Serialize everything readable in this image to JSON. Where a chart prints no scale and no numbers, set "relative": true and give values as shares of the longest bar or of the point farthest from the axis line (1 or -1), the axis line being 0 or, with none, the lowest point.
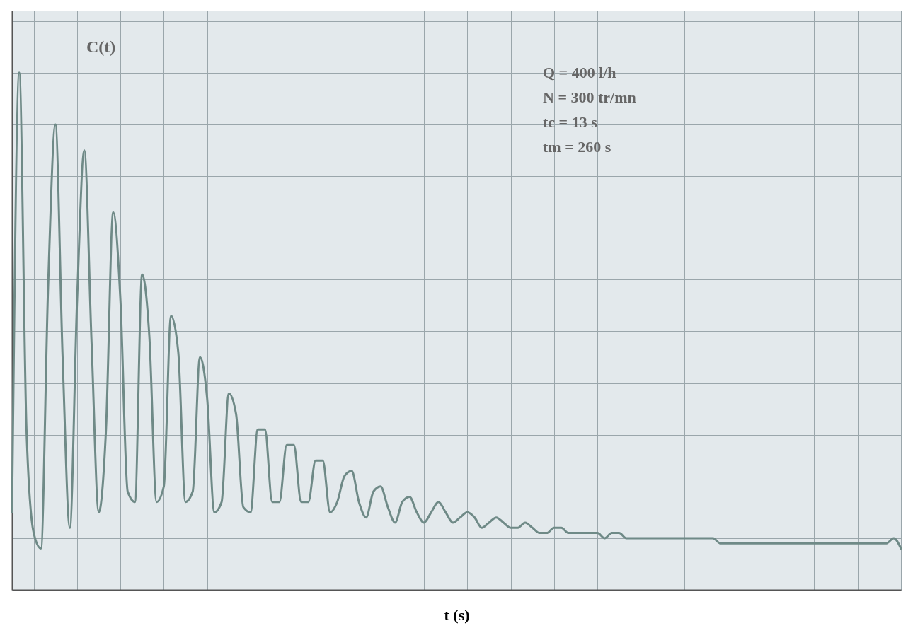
{
  "chart_data": {
    "type": "line",
    "relative": true,
    "xlabel": "t (s)",
    "ylabel": "C(t)",
    "grid": true,
    "legend": false,
    "marker": "none",
    "line_style": "solid",
    "annotations": [
      "Q = 400 l/h",
      "N = 300 tr/mn",
      "tc = 13 s",
      "tm = 260 s"
    ],
    "categories": [
      null,
      null,
      null,
      null,
      null,
      null,
      null,
      null,
      null,
      null,
      null,
      null,
      null,
      null,
      null,
      null,
      null,
      null,
      null,
      null,
      null,
      null,
      null,
      null,
      null,
      null,
      null,
      null,
      null,
      null,
      null,
      null,
      null,
      null,
      null,
      null,
      null,
      null,
      null,
      null,
      null,
      null,
      null,
      null,
      null,
      null,
      null,
      null,
      null,
      null,
      null,
      null,
      null,
      null,
      null,
      null,
      null,
      null,
      null,
      null,
      null,
      null,
      null,
      null,
      null,
      null,
      null,
      null,
      null,
      null,
      null,
      null,
      null,
      null,
      null,
      null,
      null,
      null,
      null,
      null,
      null,
      null,
      null,
      null,
      null,
      null,
      null,
      null,
      null,
      null,
      null,
      null,
      null,
      null,
      null,
      null,
      null,
      null,
      null,
      null,
      null,
      null,
      null,
      null,
      null,
      null,
      null,
      null,
      null,
      null,
      null,
      null,
      null,
      null,
      null,
      null,
      null,
      null,
      null,
      null,
      null,
      null,
      null,
      null
    ],
    "series": [
      {
        "color": "#6f8a87",
        "values": [
          0.15,
          1.0,
          0.31,
          0.11,
          0.08,
          0.59,
          0.9,
          0.45,
          0.12,
          0.56,
          0.85,
          0.48,
          0.15,
          0.31,
          0.73,
          0.56,
          0.19,
          0.17,
          0.61,
          0.49,
          0.17,
          0.2,
          0.53,
          0.46,
          0.17,
          0.19,
          0.45,
          0.37,
          0.15,
          0.17,
          0.38,
          0.34,
          0.16,
          0.15,
          0.31,
          0.31,
          0.17,
          0.17,
          0.28,
          0.28,
          0.17,
          0.17,
          0.25,
          0.25,
          0.15,
          0.17,
          0.22,
          0.23,
          0.17,
          0.14,
          0.19,
          0.2,
          0.16,
          0.13,
          0.17,
          0.18,
          0.15,
          0.13,
          0.15,
          0.17,
          0.15,
          0.13,
          0.14,
          0.15,
          0.14,
          0.12,
          0.13,
          0.14,
          0.13,
          0.12,
          0.12,
          0.13,
          0.12,
          0.11,
          0.11,
          0.12,
          0.12,
          0.11,
          0.11,
          0.11,
          0.11,
          0.11,
          0.1,
          0.11,
          0.11,
          0.1,
          0.1,
          0.1,
          0.1,
          0.1,
          0.1,
          0.1,
          0.1,
          0.1,
          0.1,
          0.1,
          0.1,
          0.1,
          0.09,
          0.09,
          0.09,
          0.09,
          0.09,
          0.09,
          0.09,
          0.09,
          0.09,
          0.09,
          0.09,
          0.09,
          0.09,
          0.09,
          0.09,
          0.09,
          0.09,
          0.09,
          0.09,
          0.09,
          0.09,
          0.09,
          0.09,
          0.09,
          0.1,
          0.08
        ]
      }
    ]
  }
}
